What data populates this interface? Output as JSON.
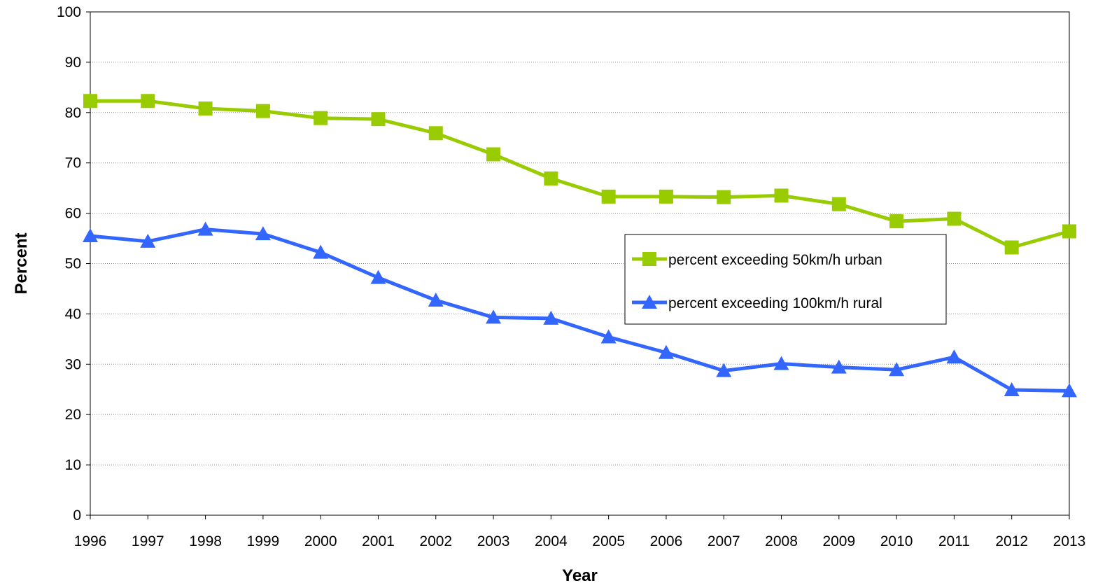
{
  "chart_data": {
    "type": "line",
    "title": "",
    "xlabel": "Year",
    "ylabel": "Percent",
    "x": [
      "1996",
      "1997",
      "1998",
      "1999",
      "2000",
      "2001",
      "2002",
      "2003",
      "2004",
      "2005",
      "2006",
      "2007",
      "2008",
      "2009",
      "2010",
      "2011",
      "2012",
      "2013"
    ],
    "ylim": [
      0,
      100
    ],
    "yticks": [
      "0",
      "10",
      "20",
      "30",
      "40",
      "50",
      "60",
      "70",
      "80",
      "90",
      "100"
    ],
    "grid": true,
    "legend_position": "right",
    "series": [
      {
        "name": "percent exceeding 50km/h urban",
        "color": "#99CC00",
        "marker": "square",
        "values": [
          82.3,
          82.3,
          80.8,
          80.3,
          78.9,
          78.7,
          75.9,
          71.7,
          66.9,
          63.3,
          63.3,
          63.2,
          63.5,
          61.8,
          58.4,
          58.9,
          53.2,
          56.4
        ]
      },
      {
        "name": "percent exceeding 100km/h rural",
        "color": "#3366FF",
        "marker": "triangle",
        "values": [
          55.5,
          54.4,
          56.8,
          55.9,
          52.2,
          47.2,
          42.7,
          39.3,
          39.1,
          35.4,
          32.3,
          28.7,
          30.1,
          29.4,
          28.9,
          31.4,
          24.9,
          24.7
        ]
      }
    ]
  }
}
